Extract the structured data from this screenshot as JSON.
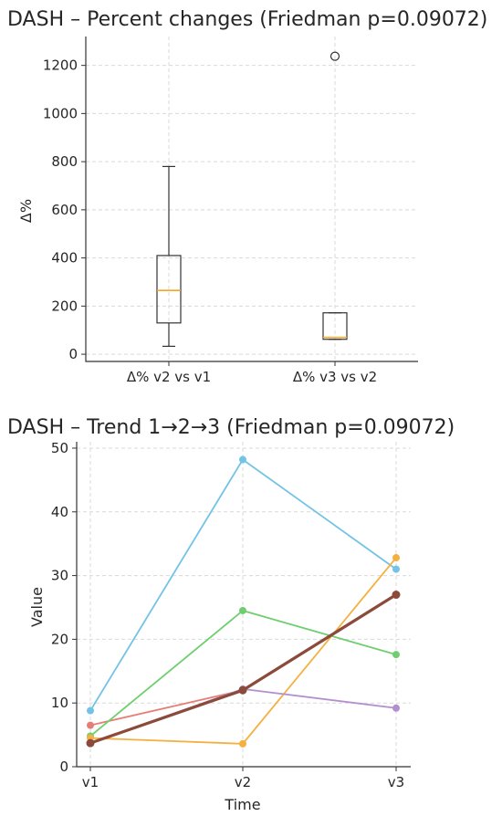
{
  "chart_data": [
    {
      "type": "box",
      "title": "DASH – Percent changes (Friedman p=0.09072)",
      "ylabel": "Δ%",
      "xlabel": "",
      "ylim": [
        -30,
        1320
      ],
      "yticks": [
        0,
        200,
        400,
        600,
        800,
        1000,
        1200
      ],
      "grid": true,
      "categories": [
        "Δ% v2 vs v1",
        "Δ% v3 vs v2"
      ],
      "boxes": [
        {
          "name": "Δ% v2 vs v1",
          "whisker_low": 33,
          "q1": 130,
          "median": 265,
          "q3": 410,
          "whisker_high": 780,
          "outliers": []
        },
        {
          "name": "Δ% v3 vs v2",
          "whisker_low": 62,
          "q1": 62,
          "median": 70,
          "q3": 172,
          "whisker_high": 172,
          "outliers": [
            1238
          ]
        }
      ],
      "colors": {
        "box": "#333333",
        "median": "#f5a623"
      }
    },
    {
      "type": "line",
      "title": "DASH – Trend 1→2→3 (Friedman p=0.09072)",
      "xlabel": "Time",
      "ylabel": "Value",
      "x": [
        "v1",
        "v2",
        "v3"
      ],
      "ylim": [
        0,
        51
      ],
      "yticks": [
        0,
        10,
        20,
        30,
        40,
        50
      ],
      "grid": true,
      "series": [
        {
          "values": [
            8.8,
            48.2,
            31.0
          ],
          "color": "#72c3e6"
        },
        {
          "values": [
            6.5,
            12.0,
            27.0
          ],
          "color": "#e67e73"
        },
        {
          "values": [
            4.8,
            24.5,
            17.6
          ],
          "color": "#6fcf6f"
        },
        {
          "values": [
            4.5,
            3.6,
            32.8
          ],
          "color": "#f5b041"
        },
        {
          "values": [
            3.7,
            12.2,
            9.2
          ],
          "color": "#b48fd0"
        },
        {
          "values": [
            3.7,
            12.0,
            27.0
          ],
          "color": "#8b4a3a",
          "bold": true
        }
      ]
    }
  ]
}
